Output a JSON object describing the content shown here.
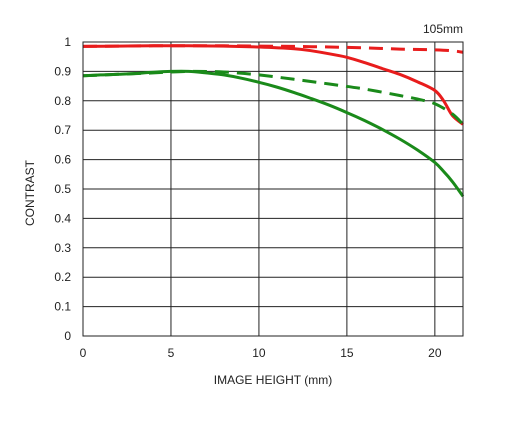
{
  "chart_data": {
    "type": "line",
    "title": "",
    "annotation": "105mm",
    "xlabel": "IMAGE HEIGHT (mm)",
    "ylabel": "CONTRAST",
    "xlim": [
      0,
      21.6
    ],
    "ylim": [
      0,
      1
    ],
    "xticks": [
      0,
      5,
      10,
      15,
      20
    ],
    "yticks": [
      0,
      0.1,
      0.2,
      0.3,
      0.4,
      0.5,
      0.6,
      0.7,
      0.8,
      0.9,
      1
    ],
    "ytick_labels": [
      "0",
      "0.1",
      "0.2",
      "0.3",
      "0.4",
      "0.5",
      "0.6",
      "0.7",
      "0.8",
      "0.9",
      "1"
    ],
    "grid": true,
    "legend": "none",
    "series": [
      {
        "color": "#e81c1c",
        "style": "solid",
        "x": [
          0,
          2,
          4,
          6,
          8,
          10,
          12,
          13,
          14,
          15,
          16,
          17,
          18,
          19,
          20,
          20.5,
          21,
          21.6
        ],
        "y": [
          0.985,
          0.986,
          0.987,
          0.987,
          0.986,
          0.983,
          0.977,
          0.97,
          0.96,
          0.948,
          0.93,
          0.91,
          0.89,
          0.865,
          0.835,
          0.8,
          0.75,
          0.72
        ]
      },
      {
        "color": "#e81c1c",
        "style": "dashed",
        "x": [
          0,
          2,
          4,
          6,
          8,
          10,
          12,
          14,
          16,
          18,
          20,
          21,
          21.6
        ],
        "y": [
          0.985,
          0.986,
          0.987,
          0.987,
          0.987,
          0.986,
          0.985,
          0.983,
          0.98,
          0.976,
          0.973,
          0.97,
          0.965
        ]
      },
      {
        "color": "#1a8a1a",
        "style": "solid",
        "x": [
          0,
          1,
          2,
          3,
          4,
          5,
          6,
          7,
          8,
          9,
          10,
          11,
          12,
          13,
          14,
          15,
          16,
          17,
          18,
          19,
          20,
          20.5,
          21,
          21.6
        ],
        "y": [
          0.885,
          0.888,
          0.89,
          0.893,
          0.897,
          0.9,
          0.9,
          0.895,
          0.888,
          0.877,
          0.863,
          0.847,
          0.828,
          0.807,
          0.785,
          0.76,
          0.733,
          0.703,
          0.67,
          0.633,
          0.59,
          0.56,
          0.525,
          0.475
        ]
      },
      {
        "color": "#1a8a1a",
        "style": "dashed",
        "x": [
          0,
          2,
          4,
          6,
          8,
          10,
          12,
          14,
          16,
          18,
          19,
          20,
          21,
          21.6
        ],
        "y": [
          0.885,
          0.89,
          0.895,
          0.9,
          0.898,
          0.888,
          0.873,
          0.857,
          0.84,
          0.818,
          0.806,
          0.79,
          0.755,
          0.72
        ]
      }
    ]
  }
}
